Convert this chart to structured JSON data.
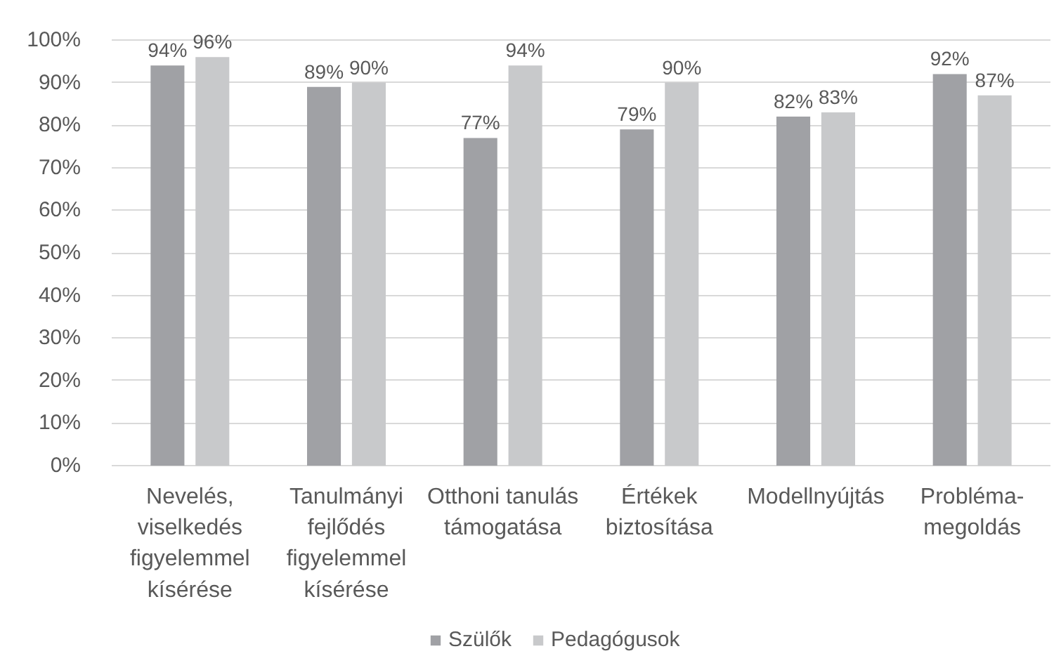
{
  "chart_data": {
    "type": "bar",
    "categories": [
      "Nevelés, viselkedés figyelemmel kísérése",
      "Tanulmányi fejlődés figyelemmel kísérése",
      "Otthoni tanulás támogatása",
      "Értékek biztosítása",
      "Modellnyújtás",
      "Probléma-megoldás"
    ],
    "series": [
      {
        "name": "Szülők",
        "color": "#a0a1a5",
        "values": [
          94,
          89,
          77,
          79,
          82,
          92
        ],
        "value_labels": [
          "94%",
          "89%",
          "77%",
          "79%",
          "82%",
          "92%"
        ]
      },
      {
        "name": "Pedagógusok",
        "color": "#c8c9cb",
        "values": [
          96,
          90,
          94,
          90,
          83,
          87
        ],
        "value_labels": [
          "96%",
          "90%",
          "94%",
          "90%",
          "83%",
          "87%"
        ]
      }
    ],
    "ylim": [
      0,
      100
    ],
    "yticks": [
      {
        "value": 0,
        "label": "0%"
      },
      {
        "value": 10,
        "label": "10%"
      },
      {
        "value": 20,
        "label": "20%"
      },
      {
        "value": 30,
        "label": "30%"
      },
      {
        "value": 40,
        "label": "40%"
      },
      {
        "value": 50,
        "label": "50%"
      },
      {
        "value": 60,
        "label": "60%"
      },
      {
        "value": 70,
        "label": "70%"
      },
      {
        "value": 80,
        "label": "80%"
      },
      {
        "value": 90,
        "label": "90%"
      },
      {
        "value": 100,
        "label": "100%"
      }
    ],
    "grid": "y",
    "legend": "bottom"
  }
}
